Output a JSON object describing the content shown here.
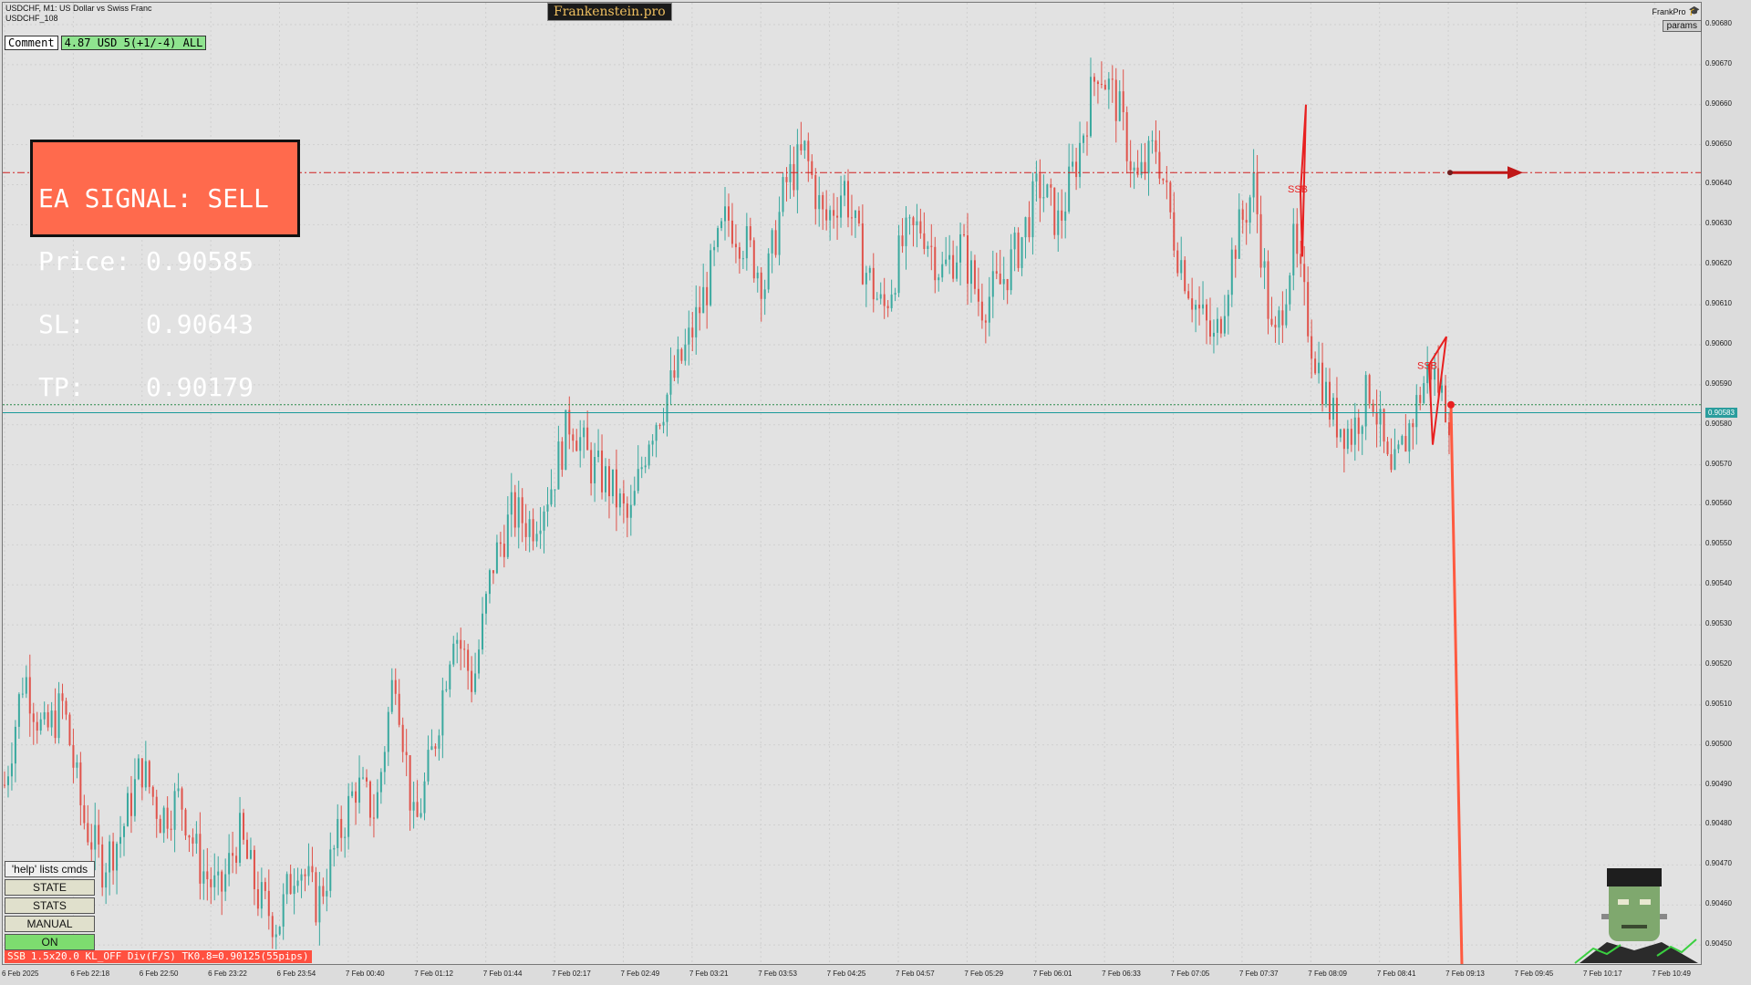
{
  "header": {
    "symbol_line": "USDCHF, M1:  US Dollar vs Swiss Franc",
    "account_line": "USDCHF_108",
    "brand": "Frankenstein.pro",
    "frankpro": "FrankPro",
    "params_label": "params"
  },
  "comment": {
    "label": "Comment",
    "value": "4.87 USD 5(+1/-4) ALL"
  },
  "signal": {
    "line1": "EA SIGNAL: SELL",
    "line2": "Price: 0.90585",
    "line3": "SL:    0.90643",
    "line4": "TP:    0.90179"
  },
  "commands": {
    "help": "'help' lists cmds",
    "state": "STATE",
    "stats": "STATS",
    "manual": "MANUAL",
    "on": "ON"
  },
  "status": {
    "tag": "SSB",
    "text": "1.5x20.0 KL_OFF Div(F/S) TK0.8=0.90125(55pips)"
  },
  "price_tag": "0.90583",
  "colors": {
    "bull": "#3aa99f",
    "bear": "#e0524a",
    "signal_bg": "#ff6a4d",
    "sl_line": "#d02020",
    "bid_line": "#1a9a9a"
  },
  "chart_data": {
    "type": "candlestick",
    "title": "",
    "xlabel": "",
    "ylabel": "",
    "ylim": [
      0.90445,
      0.90685
    ],
    "y_ticks": [
      "0.90680",
      "0.90670",
      "0.90660",
      "0.90650",
      "0.90640",
      "0.90630",
      "0.90620",
      "0.90610",
      "0.90600",
      "0.90590",
      "0.90580",
      "0.90570",
      "0.90560",
      "0.90550",
      "0.90540",
      "0.90530",
      "0.90520",
      "0.90510",
      "0.90500",
      "0.90490",
      "0.90480",
      "0.90470",
      "0.90460",
      "0.90450"
    ],
    "x_ticks": [
      "6 Feb 2025",
      "6 Feb 22:18",
      "6 Feb 22:50",
      "6 Feb 23:22",
      "6 Feb 23:54",
      "7 Feb 00:40",
      "7 Feb 01:12",
      "7 Feb 01:44",
      "7 Feb 02:17",
      "7 Feb 02:49",
      "7 Feb 03:21",
      "7 Feb 03:53",
      "7 Feb 04:25",
      "7 Feb 04:57",
      "7 Feb 05:29",
      "7 Feb 06:01",
      "7 Feb 06:33",
      "7 Feb 07:05",
      "7 Feb 07:37",
      "7 Feb 08:09",
      "7 Feb 08:41",
      "7 Feb 09:13",
      "7 Feb 09:45",
      "7 Feb 10:17",
      "7 Feb 10:49"
    ],
    "close_path": [
      0.9049,
      0.90518,
      0.90502,
      0.9051,
      0.90482,
      0.9047,
      0.90478,
      0.90495,
      0.90482,
      0.90487,
      0.9047,
      0.90462,
      0.90478,
      0.90462,
      0.90455,
      0.90472,
      0.9046,
      0.90475,
      0.9049,
      0.90483,
      0.9052,
      0.90478,
      0.905,
      0.9053,
      0.90515,
      0.90545,
      0.90558,
      0.90555,
      0.90565,
      0.90582,
      0.9057,
      0.90565,
      0.90555,
      0.90578,
      0.90588,
      0.906,
      0.90615,
      0.90632,
      0.90625,
      0.90615,
      0.9064,
      0.90648,
      0.9063,
      0.9064,
      0.9062,
      0.90608,
      0.90625,
      0.9063,
      0.90618,
      0.90625,
      0.9061,
      0.90615,
      0.90625,
      0.9064,
      0.9063,
      0.90648,
      0.9067,
      0.9066,
      0.9064,
      0.9065,
      0.90625,
      0.9061,
      0.906,
      0.90625,
      0.9064,
      0.90598,
      0.90625,
      0.906,
      0.90582,
      0.90578,
      0.9059,
      0.90565,
      0.9058,
      0.90595,
      0.90583
    ],
    "sl_level": 0.90643,
    "bid_level": 0.90583,
    "ask_level": 0.90585,
    "annotations": [
      "SSB",
      "SSB"
    ]
  }
}
